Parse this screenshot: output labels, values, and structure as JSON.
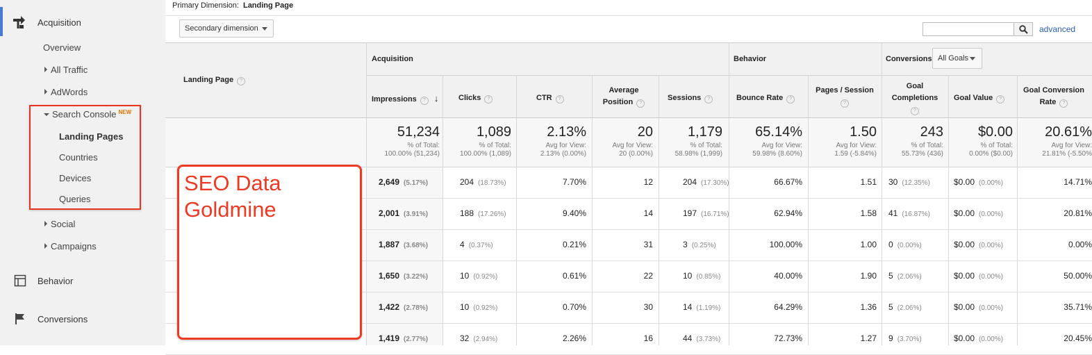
{
  "sidebar": {
    "acquisition": "Acquisition",
    "overview": "Overview",
    "all_traffic": "All Traffic",
    "adwords": "AdWords",
    "search_console": "Search Console",
    "search_console_badge": "NEW",
    "sub_items": [
      "Landing Pages",
      "Countries",
      "Devices",
      "Queries"
    ],
    "social": "Social",
    "campaigns": "Campaigns",
    "behavior": "Behavior",
    "conversions": "Conversions",
    "accent": "#4a7bd3",
    "highlight_color": "#e8331f"
  },
  "toolbar": {
    "primary_dimension_label": "Primary Dimension:",
    "primary_dimension_value": "Landing Page",
    "secondary_dimension": "Secondary dimension",
    "advanced": "advanced"
  },
  "table": {
    "landing_page_header": "Landing Page",
    "groups": {
      "acquisition": "Acquisition",
      "behavior": "Behavior",
      "conversions": "Conversions",
      "goals_select": "All Goals"
    },
    "columns": [
      "Impressions",
      "Clicks",
      "CTR",
      "Average Position",
      "Sessions",
      "Bounce Rate",
      "Pages / Session",
      "Goal Completions",
      "Goal Value",
      "Goal Conversion Rate"
    ],
    "totals": [
      {
        "value": "51,234",
        "sub1": "% of Total:",
        "sub2": "100.00% (51,234)"
      },
      {
        "value": "1,089",
        "sub1": "% of Total:",
        "sub2": "100.00% (1,089)"
      },
      {
        "value": "2.13%",
        "sub1": "Avg for View:",
        "sub2": "2.13% (0.00%)"
      },
      {
        "value": "20",
        "sub1": "Avg for View:",
        "sub2": "20 (0.00%)"
      },
      {
        "value": "1,179",
        "sub1": "% of Total:",
        "sub2": "58.98% (1,999)"
      },
      {
        "value": "65.14%",
        "sub1": "Avg for View:",
        "sub2": "59.98% (8.60%)"
      },
      {
        "value": "1.50",
        "sub1": "Avg for View:",
        "sub2": "1.59 (-5.84%)"
      },
      {
        "value": "243",
        "sub1": "% of Total:",
        "sub2": "55.73% (436)"
      },
      {
        "value": "$0.00",
        "sub1": "% of Total:",
        "sub2": "0.00% ($0.00)"
      },
      {
        "value": "20.61%",
        "sub1": "Avg for View:",
        "sub2": "21.81% (-5.50%"
      }
    ],
    "rows": [
      {
        "imp": "2,649",
        "imp_pct": "(5.17%)",
        "clicks": "204",
        "clicks_pct": "(18.73%)",
        "ctr": "7.70%",
        "pos": "12",
        "sessions": "204",
        "sessions_pct": "(17.30%)",
        "bounce": "66.67%",
        "pps": "1.51",
        "gc": "30",
        "gc_pct": "(12.35%)",
        "gv": "$0.00",
        "gv_pct": "(0.00%)",
        "gcr": "14.71%"
      },
      {
        "imp": "2,001",
        "imp_pct": "(3.91%)",
        "clicks": "188",
        "clicks_pct": "(17.26%)",
        "ctr": "9.40%",
        "pos": "14",
        "sessions": "197",
        "sessions_pct": "(16.71%)",
        "bounce": "62.94%",
        "pps": "1.58",
        "gc": "41",
        "gc_pct": "(16.87%)",
        "gv": "$0.00",
        "gv_pct": "(0.00%)",
        "gcr": "20.81%"
      },
      {
        "imp": "1,887",
        "imp_pct": "(3.68%)",
        "clicks": "4",
        "clicks_pct": "(0.37%)",
        "ctr": "0.21%",
        "pos": "31",
        "sessions": "3",
        "sessions_pct": "(0.25%)",
        "bounce": "100.00%",
        "pps": "1.00",
        "gc": "0",
        "gc_pct": "(0.00%)",
        "gv": "$0.00",
        "gv_pct": "(0.00%)",
        "gcr": "0.00%"
      },
      {
        "imp": "1,650",
        "imp_pct": "(3.22%)",
        "clicks": "10",
        "clicks_pct": "(0.92%)",
        "ctr": "0.61%",
        "pos": "22",
        "sessions": "10",
        "sessions_pct": "(0.85%)",
        "bounce": "40.00%",
        "pps": "1.90",
        "gc": "5",
        "gc_pct": "(2.06%)",
        "gv": "$0.00",
        "gv_pct": "(0.00%)",
        "gcr": "50.00%"
      },
      {
        "imp": "1,422",
        "imp_pct": "(2.78%)",
        "clicks": "10",
        "clicks_pct": "(0.92%)",
        "ctr": "0.70%",
        "pos": "30",
        "sessions": "14",
        "sessions_pct": "(1.19%)",
        "bounce": "64.29%",
        "pps": "1.36",
        "gc": "5",
        "gc_pct": "(2.06%)",
        "gv": "$0.00",
        "gv_pct": "(0.00%)",
        "gcr": "35.71%"
      },
      {
        "imp": "1,419",
        "imp_pct": "(2.77%)",
        "clicks": "32",
        "clicks_pct": "(2.94%)",
        "ctr": "2.26%",
        "pos": "16",
        "sessions": "44",
        "sessions_pct": "(3.73%)",
        "bounce": "72.73%",
        "pps": "1.27",
        "gc": "9",
        "gc_pct": "(3.70%)",
        "gv": "$0.00",
        "gv_pct": "(0.00%)",
        "gcr": "20.45%"
      }
    ]
  },
  "annotation": {
    "line1": "SEO Data",
    "line2": "Goldmine",
    "color": "#ee3a24"
  }
}
